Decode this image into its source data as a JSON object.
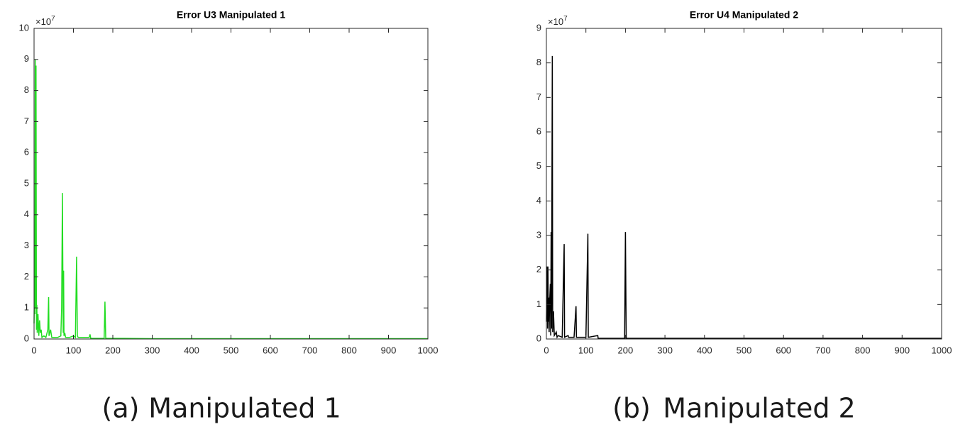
{
  "chart_data": [
    {
      "type": "line",
      "title": "Error U3  Manipulated 1",
      "caption_label": "(a)",
      "caption": "Manipulated 1",
      "y_multiplier": "×10",
      "y_multiplier_exponent": "7",
      "xlim": [
        0,
        1000
      ],
      "ylim": [
        0,
        10
      ],
      "xticks": [
        0,
        100,
        200,
        300,
        400,
        500,
        600,
        700,
        800,
        900,
        1000
      ],
      "yticks": [
        0,
        1,
        2,
        3,
        4,
        5,
        6,
        7,
        8,
        9,
        10
      ],
      "series": [
        {
          "color": "#22dd22",
          "x": [
            0,
            1,
            2,
            3,
            4,
            5,
            6,
            7,
            8,
            10,
            12,
            14,
            16,
            18,
            20,
            25,
            30,
            35,
            37,
            38,
            40,
            42,
            45,
            50,
            60,
            68,
            70,
            72,
            74,
            75,
            76,
            78,
            80,
            90,
            100,
            105,
            108,
            110,
            112,
            120,
            140,
            142,
            144,
            150,
            170,
            178,
            180,
            182,
            190,
            200,
            230,
            300,
            1000
          ],
          "values": [
            0.5,
            1.5,
            0.8,
            9.0,
            1.0,
            8.8,
            0.3,
            1.1,
            0.2,
            0.8,
            0.1,
            0.6,
            0.2,
            0.3,
            0.05,
            0.1,
            0.05,
            0.3,
            1.35,
            0.1,
            0.2,
            0.3,
            0.05,
            0.05,
            0.05,
            0.1,
            1.0,
            4.7,
            0.2,
            2.2,
            0.1,
            0.2,
            0.05,
            0.05,
            0.1,
            0.05,
            2.65,
            0.1,
            0.05,
            0.05,
            0.05,
            0.15,
            0.02,
            0.02,
            0.02,
            0.02,
            1.2,
            0.02,
            0.02,
            0.02,
            0.02,
            0.01,
            0.01
          ]
        }
      ]
    },
    {
      "type": "line",
      "title": "Error U4  Manipulated 2",
      "caption_label": "(b)",
      "caption": "Manipulated 2",
      "y_multiplier": "×10",
      "y_multiplier_exponent": "7",
      "xlim": [
        0,
        1000
      ],
      "ylim": [
        0,
        9
      ],
      "xticks": [
        0,
        100,
        200,
        300,
        400,
        500,
        600,
        700,
        800,
        900,
        1000
      ],
      "yticks": [
        0,
        1,
        2,
        3,
        4,
        5,
        6,
        7,
        8,
        9
      ],
      "series": [
        {
          "color": "#000000",
          "x": [
            0,
            2,
            3,
            4,
            5,
            6,
            7,
            8,
            10,
            11,
            12,
            13,
            15,
            16,
            18,
            20,
            25,
            27,
            30,
            40,
            45,
            46,
            55,
            56,
            70,
            75,
            76,
            100,
            105,
            106,
            130,
            131,
            198,
            200,
            202,
            300,
            1000
          ],
          "values": [
            0.5,
            2.1,
            0.3,
            2.1,
            0.5,
            1.2,
            0.2,
            1.0,
            1.6,
            0.1,
            3.1,
            0.3,
            8.2,
            0.2,
            0.8,
            0.1,
            0.2,
            0.05,
            0.1,
            0.05,
            2.75,
            0.05,
            0.1,
            0.05,
            0.05,
            0.95,
            0.05,
            0.05,
            3.05,
            0.05,
            0.1,
            0.02,
            0.02,
            3.1,
            0.02,
            0.02,
            0.02
          ]
        }
      ]
    }
  ]
}
